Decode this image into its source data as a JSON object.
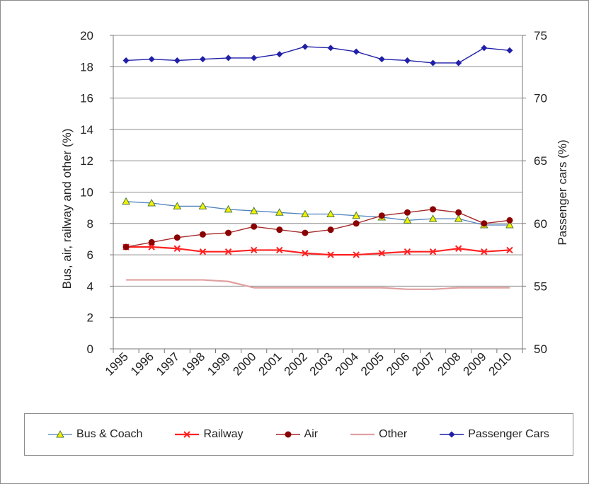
{
  "chart_data": {
    "type": "line",
    "x": [
      "1995",
      "1996",
      "1997",
      "1998",
      "1999",
      "2000",
      "2001",
      "2002",
      "2003",
      "2004",
      "2005",
      "2006",
      "2007",
      "2008",
      "2009",
      "2010"
    ],
    "ylabel": "Bus, air, railway and other (%)",
    "y2label": "Passenger cars (%)",
    "ylim": [
      0,
      20
    ],
    "y2lim": [
      50,
      75
    ],
    "yticks": [
      "0",
      "2",
      "4",
      "6",
      "8",
      "10",
      "12",
      "14",
      "16",
      "18",
      "20"
    ],
    "y2ticks": [
      "50",
      "55",
      "60",
      "65",
      "70",
      "75"
    ],
    "grid": true,
    "legend_position": "bottom",
    "series": [
      {
        "name": "Bus & Coach",
        "axis": "left",
        "color": "#4f81bd",
        "marker": "triangle",
        "marker_fill": "#f5f000",
        "values": [
          9.4,
          9.3,
          9.1,
          9.1,
          8.9,
          8.8,
          8.7,
          8.6,
          8.6,
          8.5,
          8.4,
          8.2,
          8.3,
          8.3,
          7.9,
          7.9
        ]
      },
      {
        "name": "Railway",
        "axis": "left",
        "color": "#ff2020",
        "marker": "x",
        "marker_fill": "#ff2020",
        "values": [
          6.5,
          6.5,
          6.4,
          6.2,
          6.2,
          6.3,
          6.3,
          6.1,
          6.0,
          6.0,
          6.1,
          6.2,
          6.2,
          6.4,
          6.2,
          6.3
        ]
      },
      {
        "name": "Air",
        "axis": "left",
        "color": "#a52a2a",
        "marker": "circle",
        "marker_fill": "#8b0000",
        "values": [
          6.5,
          6.8,
          7.1,
          7.3,
          7.4,
          7.8,
          7.6,
          7.4,
          7.6,
          8.0,
          8.5,
          8.7,
          8.9,
          8.7,
          8.0,
          8.2
        ]
      },
      {
        "name": "Other",
        "axis": "left",
        "color": "#e0a0a0",
        "marker": "none",
        "marker_fill": "#e0a0a0",
        "values": [
          4.4,
          4.4,
          4.4,
          4.4,
          4.3,
          3.9,
          3.9,
          3.9,
          3.9,
          3.9,
          3.9,
          3.8,
          3.8,
          3.9,
          3.9,
          3.9
        ]
      },
      {
        "name": "Passenger Cars",
        "axis": "right",
        "color": "#1f1fa8",
        "marker": "diamond",
        "marker_fill": "#1f1fa8",
        "values": [
          73.0,
          73.1,
          73.0,
          73.1,
          73.2,
          73.2,
          73.5,
          74.1,
          74.0,
          73.7,
          73.1,
          73.0,
          72.8,
          72.8,
          74.0,
          73.8
        ]
      }
    ]
  }
}
